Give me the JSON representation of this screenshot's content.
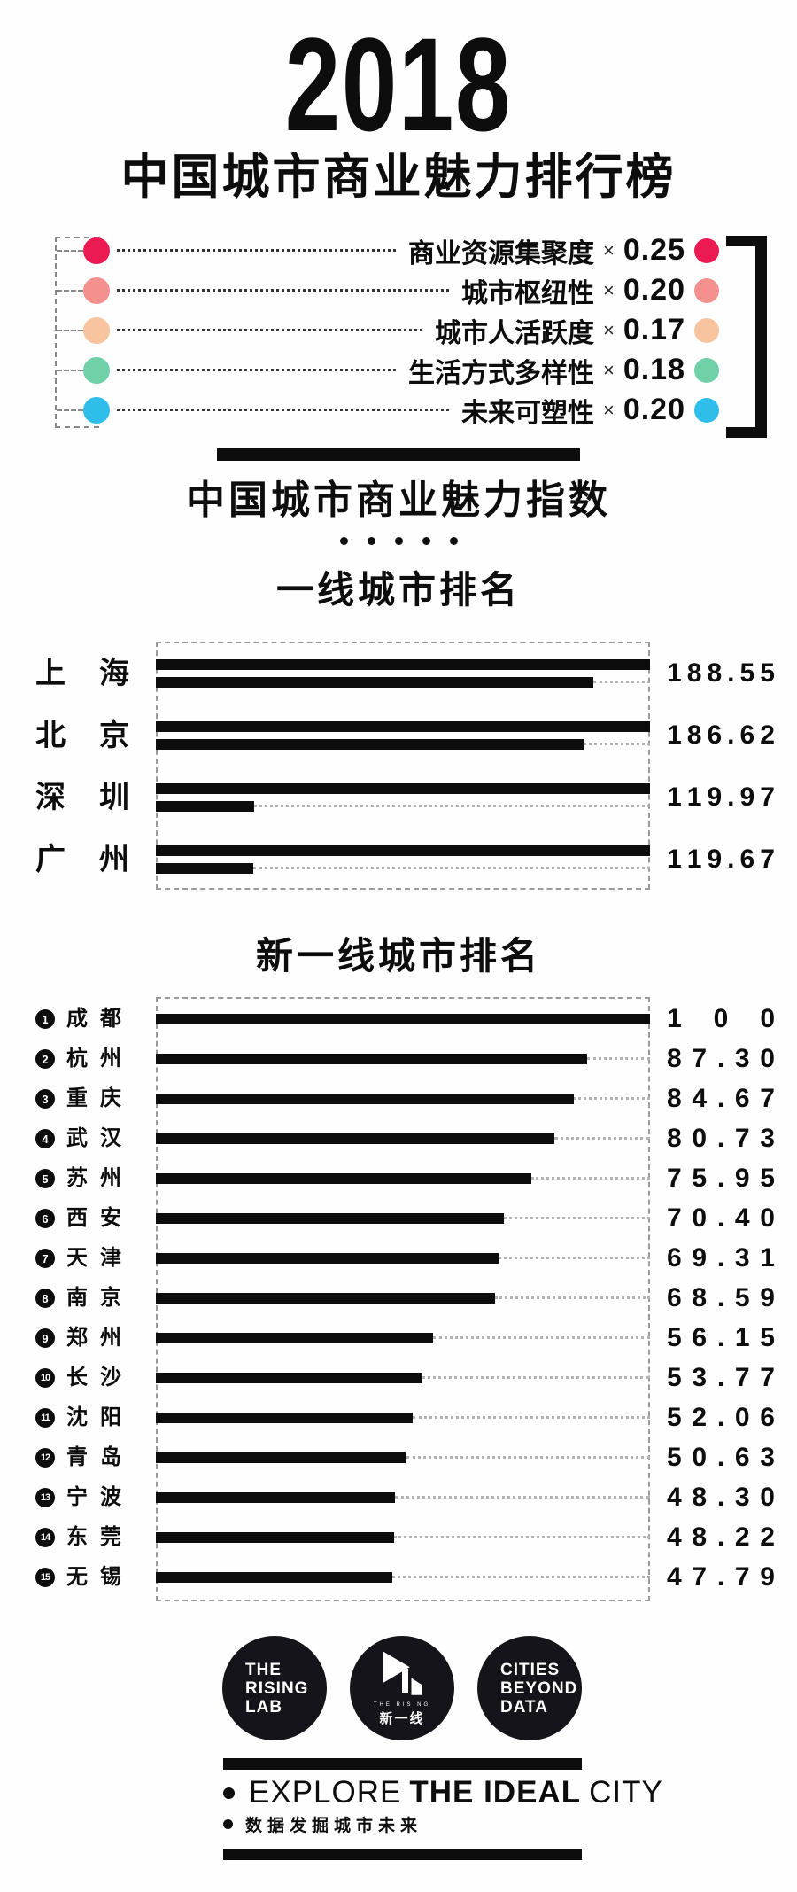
{
  "page": {
    "background": "#fefefe",
    "ink": "#0d0d0d"
  },
  "header": {
    "year": "2018",
    "title": "中国城市商业魅力排行榜"
  },
  "legend": {
    "items": [
      {
        "label": "商业资源集聚度",
        "op": "×",
        "weight": "0.25",
        "color": "#ec1a52"
      },
      {
        "label": "城市枢纽性",
        "op": "×",
        "weight": "0.20",
        "color": "#f4908d"
      },
      {
        "label": "城市人活跃度",
        "op": "×",
        "weight": "0.17",
        "color": "#f8c49f"
      },
      {
        "label": "生活方式多样性",
        "op": "×",
        "weight": "0.18",
        "color": "#70d0a8"
      },
      {
        "label": "未来可塑性",
        "op": "×",
        "weight": "0.20",
        "color": "#2fbde9"
      }
    ]
  },
  "section": {
    "title": "中国城市商业魅力指数",
    "dot_count": 5
  },
  "chart_data": [
    {
      "type": "bar",
      "title": "一线城市排名",
      "orientation": "horizontal",
      "xlim": [
        0,
        100
      ],
      "encoding": "thick top bar = first 100 points (full box width); thin bar = value minus 100; dotted leader to box edge",
      "categories": [
        "上海",
        "北京",
        "深圳",
        "广州"
      ],
      "values": [
        188.55,
        186.62,
        119.97,
        119.67
      ],
      "value_labels": [
        "188.55",
        "186.62",
        "119.97",
        "119.67"
      ]
    },
    {
      "type": "bar",
      "title": "新一线城市排名",
      "orientation": "horizontal",
      "xlim": [
        0,
        100
      ],
      "encoding": "bar length = value as percent of box width; dotted leader to box edge",
      "ranks": [
        1,
        2,
        3,
        4,
        5,
        6,
        7,
        8,
        9,
        10,
        11,
        12,
        13,
        14,
        15
      ],
      "categories": [
        "成都",
        "杭州",
        "重庆",
        "武汉",
        "苏州",
        "西安",
        "天津",
        "南京",
        "郑州",
        "长沙",
        "沈阳",
        "青岛",
        "宁波",
        "东莞",
        "无锡"
      ],
      "values": [
        100,
        87.3,
        84.67,
        80.73,
        75.95,
        70.4,
        69.31,
        68.59,
        56.15,
        53.77,
        52.06,
        50.63,
        48.3,
        48.22,
        47.79
      ],
      "value_labels": [
        "100",
        "87.30",
        "84.67",
        "80.73",
        "75.95",
        "70.40",
        "69.31",
        "68.59",
        "56.15",
        "53.77",
        "52.06",
        "50.63",
        "48.30",
        "48.22",
        "47.79"
      ]
    }
  ],
  "footer": {
    "logos": [
      {
        "name": "the-rising-lab",
        "lines": [
          "THE",
          "RISING",
          "LAB"
        ]
      },
      {
        "name": "the-rising-emblem",
        "small_text": "THE RISING",
        "cn_text": "新一线"
      },
      {
        "name": "cities-beyond-data",
        "lines": [
          "CITIES",
          "BEYOND",
          "DATA"
        ]
      }
    ],
    "slogan_en": {
      "prefix": "EXPLORE",
      "emphasis": "THE IDEAL",
      "suffix": "CITY"
    },
    "slogan_cn": "数据发掘城市未来"
  }
}
